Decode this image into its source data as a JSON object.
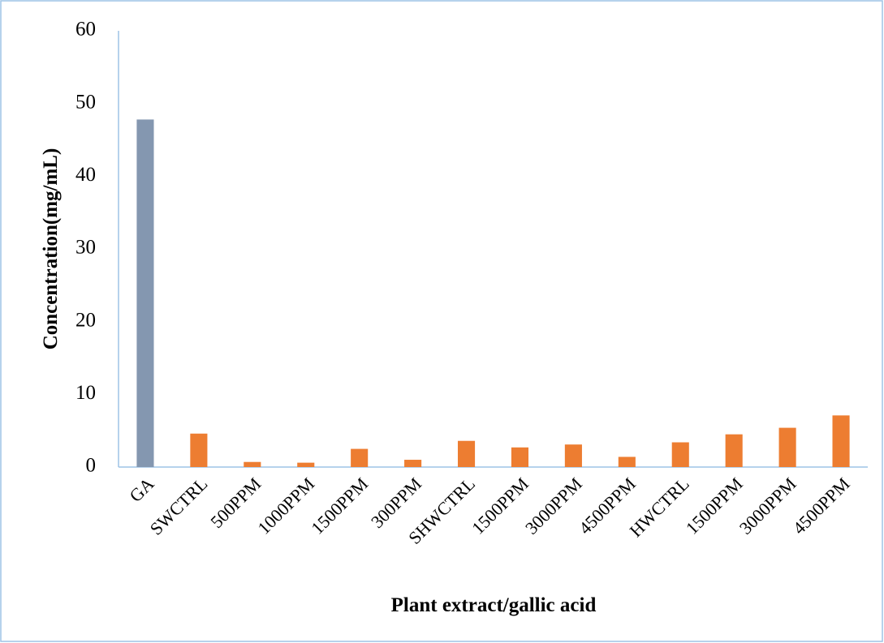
{
  "chart_data": {
    "type": "bar",
    "x_label": "Plant extract/gallic acid",
    "y_label": "Concentration(mg/mL)",
    "categories": [
      "GA",
      "SWCTRL",
      "500PPM",
      "1000PPM",
      "1500PPM",
      "300PPM",
      "SHWCTRL",
      "1500PPM",
      "3000PPM",
      "4500PPM",
      "HWCTRL",
      "1500PPM",
      "3000PPM",
      "4500PPM"
    ],
    "values": [
      47.8,
      4.6,
      0.7,
      0.6,
      2.5,
      1.0,
      3.6,
      2.7,
      3.1,
      1.4,
      3.4,
      4.5,
      5.4,
      7.1
    ],
    "colors": [
      "#8497b0",
      "#ed7d31",
      "#ed7d31",
      "#ed7d31",
      "#ed7d31",
      "#ed7d31",
      "#ed7d31",
      "#ed7d31",
      "#ed7d31",
      "#ed7d31",
      "#ed7d31",
      "#ed7d31",
      "#ed7d31",
      "#ed7d31"
    ],
    "ylim": [
      0,
      60
    ],
    "yticks": [
      0,
      10,
      20,
      30,
      40,
      50,
      60
    ],
    "grid": false
  }
}
